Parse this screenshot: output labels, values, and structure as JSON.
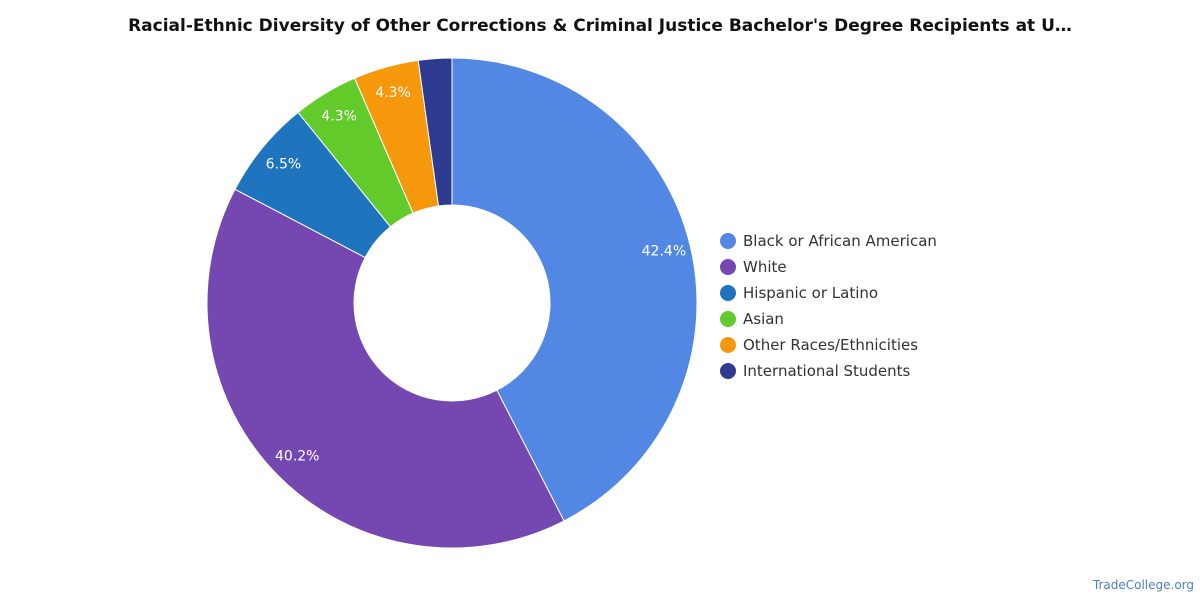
{
  "chart_data": {
    "type": "pie",
    "title": "Racial-Ethnic Diversity of Other Corrections & Criminal Justice Bachelor's Degree Recipients at U…",
    "donut": true,
    "legend_position": "right",
    "slices": [
      {
        "name": "Black or African American",
        "value": 42.4,
        "label": "42.4%",
        "color": "#5288e3"
      },
      {
        "name": "White",
        "value": 40.2,
        "label": "40.2%",
        "color": "#7547b0"
      },
      {
        "name": "Hispanic or Latino",
        "value": 6.5,
        "label": "6.5%",
        "color": "#1f74be"
      },
      {
        "name": "Asian",
        "value": 4.3,
        "label": "4.3%",
        "color": "#62cb2b"
      },
      {
        "name": "Other Races/Ethnicities",
        "value": 4.3,
        "label": "4.3%",
        "color": "#f6980c"
      },
      {
        "name": "International Students",
        "value": 2.2,
        "label": "",
        "color": "#2c3a90"
      }
    ]
  },
  "watermark": "TradeCollege.org"
}
